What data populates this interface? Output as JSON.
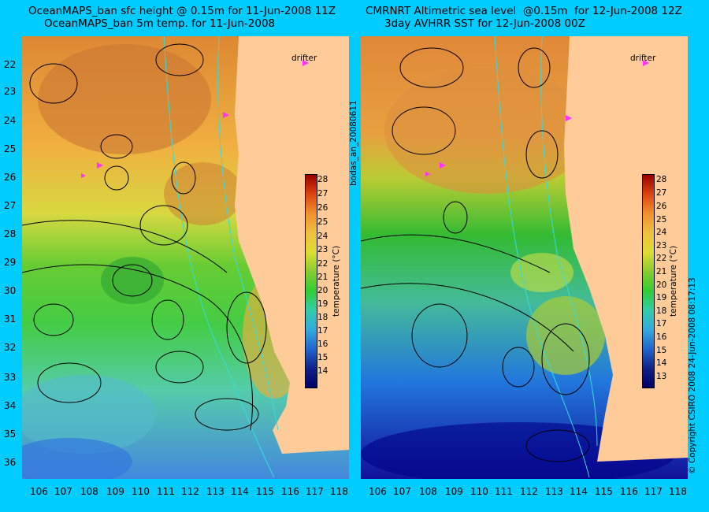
{
  "left": {
    "title_line1": "OceanMAPS_ban sfc height @ 0.15m for 11-Jun-2008 11Z",
    "title_line2": "OceanMAPS_ban 5m temp. for 11-Jun-2008"
  },
  "right": {
    "title_line1": "CMRNRT Altimetric sea level  @0.15m  for 12-Jun-2008 12Z",
    "title_line2": "3day AVHRR SST for 12-Jun-2008 00Z"
  },
  "lat_ticks": [
    "22",
    "23",
    "24",
    "25",
    "26",
    "27",
    "28",
    "29",
    "30",
    "31",
    "32",
    "33",
    "34",
    "35",
    "36"
  ],
  "lon_ticks": [
    "106",
    "107",
    "108",
    "109",
    "110",
    "111",
    "112",
    "113",
    "114",
    "115",
    "116",
    "117",
    "118"
  ],
  "left_cbar_ticks": [
    "28",
    "27",
    "26",
    "25",
    "24",
    "23",
    "22",
    "21",
    "20",
    "19",
    "18",
    "17",
    "16",
    "15",
    "14"
  ],
  "right_cbar_ticks": [
    "28",
    "27",
    "26",
    "25",
    "24",
    "23",
    "22",
    "21",
    "20",
    "19",
    "18",
    "17",
    "16",
    "15",
    "14",
    "13"
  ],
  "cbar_title": "temperature (°C)",
  "drifter_label": "drifter",
  "center_id": "bodas_an_20080611",
  "copyright": "© Copyright CSIRO 2008   24-Jun-2008 08:17:13",
  "colors": {
    "background": "#00ccff",
    "land": "#ffcc99",
    "drifter": "#ff33ff",
    "contour": "#000000",
    "bathymetry": "#33dddd"
  }
}
